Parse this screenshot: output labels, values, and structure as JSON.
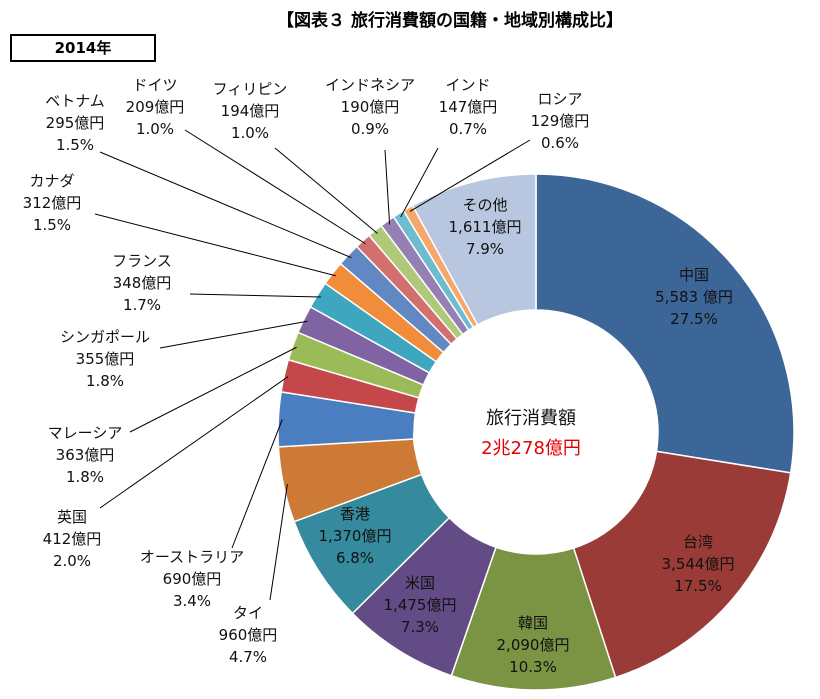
{
  "header": {
    "title": "【図表３  旅行消費額の国籍・地域別構成比】",
    "year": "2014年"
  },
  "chart_data": {
    "type": "pie",
    "variant": "donut",
    "title": "【図表３  旅行消費額の国籍・地域別構成比】",
    "subtitle": "2014年",
    "center_label": "旅行消費額",
    "center_value": "2兆278億円",
    "center_value_color": "#e60000",
    "unit": "億円",
    "slices": [
      {
        "name": "中国",
        "value": 5583,
        "value_label": "5,583 億円",
        "percent": 27.5,
        "percent_label": "27.5%",
        "color": "#3c6698"
      },
      {
        "name": "台湾",
        "value": 3544,
        "value_label": "3,544億円",
        "percent": 17.5,
        "percent_label": "17.5%",
        "color": "#9a3b38"
      },
      {
        "name": "韓国",
        "value": 2090,
        "value_label": "2,090億円",
        "percent": 10.3,
        "percent_label": "10.3%",
        "color": "#7b9444"
      },
      {
        "name": "米国",
        "value": 1475,
        "value_label": "1,475億円",
        "percent": 7.3,
        "percent_label": "7.3%",
        "color": "#634c86"
      },
      {
        "name": "香港",
        "value": 1370,
        "value_label": "1,370億円",
        "percent": 6.8,
        "percent_label": "6.8%",
        "color": "#358b9d"
      },
      {
        "name": "タイ",
        "value": 960,
        "value_label": "960億円",
        "percent": 4.7,
        "percent_label": "4.7%",
        "color": "#cc7a35"
      },
      {
        "name": "オーストラリア",
        "value": 690,
        "value_label": "690億円",
        "percent": 3.4,
        "percent_label": "3.4%",
        "color": "#4a7ec1"
      },
      {
        "name": "英国",
        "value": 412,
        "value_label": "412億円",
        "percent": 2.0,
        "percent_label": "2.0%",
        "color": "#c4484a"
      },
      {
        "name": "マレーシア",
        "value": 363,
        "value_label": "363億円",
        "percent": 1.8,
        "percent_label": "1.8%",
        "color": "#9bbb59"
      },
      {
        "name": "シンガポール",
        "value": 355,
        "value_label": "355億円",
        "percent": 1.8,
        "percent_label": "1.8%",
        "color": "#7f63a3"
      },
      {
        "name": "フランス",
        "value": 348,
        "value_label": "348億円",
        "percent": 1.7,
        "percent_label": "1.7%",
        "color": "#3fa6c0"
      },
      {
        "name": "カナダ",
        "value": 312,
        "value_label": "312億円",
        "percent": 1.5,
        "percent_label": "1.5%",
        "color": "#f08c3a"
      },
      {
        "name": "ベトナム",
        "value": 295,
        "value_label": "295億円",
        "percent": 1.5,
        "percent_label": "1.5%",
        "color": "#6188c3"
      },
      {
        "name": "ドイツ",
        "value": 209,
        "value_label": "209億円",
        "percent": 1.0,
        "percent_label": "1.0%",
        "color": "#d36f6f"
      },
      {
        "name": "フィリピン",
        "value": 194,
        "value_label": "194億円",
        "percent": 1.0,
        "percent_label": "1.0%",
        "color": "#b0c87a"
      },
      {
        "name": "インドネシア",
        "value": 190,
        "value_label": "190億円",
        "percent": 0.9,
        "percent_label": "0.9%",
        "color": "#9480b2"
      },
      {
        "name": "インド",
        "value": 147,
        "value_label": "147億円",
        "percent": 0.7,
        "percent_label": "0.7%",
        "color": "#6dbcd0"
      },
      {
        "name": "ロシア",
        "value": 129,
        "value_label": "129億円",
        "percent": 0.6,
        "percent_label": "0.6%",
        "color": "#f6a76c"
      },
      {
        "name": "その他",
        "value": 1611,
        "value_label": "1,611億円",
        "percent": 7.9,
        "percent_label": "7.9%",
        "color": "#b8c6df"
      }
    ],
    "legend": "none"
  }
}
